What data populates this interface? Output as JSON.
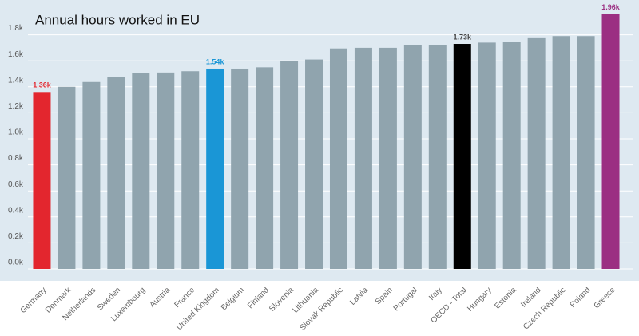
{
  "chart_data": {
    "type": "bar",
    "title": "Annual hours worked in EU",
    "categories": [
      "Germany",
      "Denmark",
      "Netherlands",
      "Sweden",
      "Luxembourg",
      "Austria",
      "France",
      "United Kingdom",
      "Belgium",
      "Finland",
      "Slovenia",
      "Lithuania",
      "Slovak Republic",
      "Latvia",
      "Spain",
      "Portugal",
      "Italy",
      "OECD - Total",
      "Hungary",
      "Estonia",
      "Ireland",
      "Czech Republic",
      "Poland",
      "Greece"
    ],
    "values": [
      1360,
      1400,
      1437,
      1474,
      1505,
      1510,
      1520,
      1540,
      1540,
      1550,
      1600,
      1610,
      1695,
      1700,
      1700,
      1720,
      1720,
      1730,
      1740,
      1745,
      1780,
      1790,
      1790,
      1960
    ],
    "value_labels": [
      "1.36k",
      null,
      null,
      null,
      null,
      null,
      null,
      "1.54k",
      null,
      null,
      null,
      null,
      null,
      null,
      null,
      null,
      null,
      "1.73k",
      null,
      null,
      null,
      null,
      null,
      "1.96k"
    ],
    "colors": [
      "#e3262e",
      "#90a4ae",
      "#90a4ae",
      "#90a4ae",
      "#90a4ae",
      "#90a4ae",
      "#90a4ae",
      "#1a96d6",
      "#90a4ae",
      "#90a4ae",
      "#90a4ae",
      "#90a4ae",
      "#90a4ae",
      "#90a4ae",
      "#90a4ae",
      "#90a4ae",
      "#90a4ae",
      "#000000",
      "#90a4ae",
      "#90a4ae",
      "#90a4ae",
      "#90a4ae",
      "#90a4ae",
      "#9b2f82"
    ],
    "ylim": [
      0,
      2000
    ],
    "yticks": [
      {
        "value": 0,
        "label": "0.0k"
      },
      {
        "value": 200,
        "label": "0.2k"
      },
      {
        "value": 400,
        "label": "0.4k"
      },
      {
        "value": 600,
        "label": "0.6k"
      },
      {
        "value": 800,
        "label": "0.8k"
      },
      {
        "value": 1000,
        "label": "1.0k"
      },
      {
        "value": 1200,
        "label": "1.2k"
      },
      {
        "value": 1400,
        "label": "1.4k"
      },
      {
        "value": 1600,
        "label": "1.6k"
      },
      {
        "value": 1800,
        "label": "1.8k"
      }
    ],
    "grid": true
  }
}
